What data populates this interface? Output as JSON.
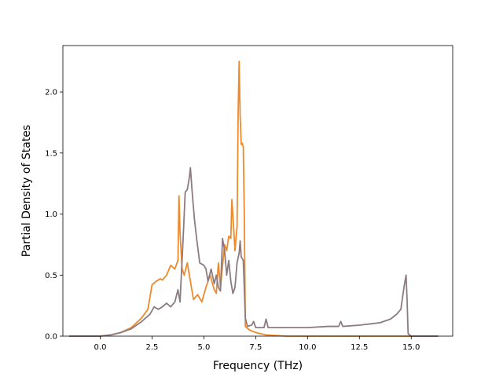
{
  "chart_data": {
    "type": "line",
    "title": "",
    "xlabel": "Frequency (THz)",
    "ylabel": "Partial Density of States",
    "xlim": [
      -1.8,
      17.0
    ],
    "ylim": [
      0.0,
      2.38
    ],
    "xticks": [
      0.0,
      2.5,
      5.0,
      7.5,
      10.0,
      12.5,
      15.0
    ],
    "xtick_labels": [
      "0.0",
      "2.5",
      "5.0",
      "7.5",
      "10.0",
      "12.5",
      "15.0"
    ],
    "yticks": [
      0.0,
      0.5,
      1.0,
      1.5,
      2.0
    ],
    "ytick_labels": [
      "0.0",
      "0.5",
      "1.0",
      "1.5",
      "2.0"
    ],
    "grid": false,
    "legend": "none",
    "series": [
      {
        "color": "#ee8a2c",
        "points": [
          [
            -1.5,
            0.0
          ],
          [
            0.0,
            0.0
          ],
          [
            0.5,
            0.01
          ],
          [
            1.0,
            0.03
          ],
          [
            1.5,
            0.07
          ],
          [
            2.0,
            0.15
          ],
          [
            2.3,
            0.22
          ],
          [
            2.5,
            0.42
          ],
          [
            2.7,
            0.45
          ],
          [
            2.9,
            0.47
          ],
          [
            3.0,
            0.46
          ],
          [
            3.2,
            0.5
          ],
          [
            3.4,
            0.58
          ],
          [
            3.6,
            0.55
          ],
          [
            3.75,
            0.62
          ],
          [
            3.8,
            1.15
          ],
          [
            3.85,
            0.85
          ],
          [
            3.95,
            0.55
          ],
          [
            4.05,
            0.5
          ],
          [
            4.2,
            0.6
          ],
          [
            4.3,
            0.5
          ],
          [
            4.5,
            0.3
          ],
          [
            4.7,
            0.34
          ],
          [
            4.9,
            0.28
          ],
          [
            5.1,
            0.4
          ],
          [
            5.3,
            0.5
          ],
          [
            5.5,
            0.38
          ],
          [
            5.6,
            0.35
          ],
          [
            5.7,
            0.6
          ],
          [
            5.8,
            0.4
          ],
          [
            6.0,
            0.75
          ],
          [
            6.1,
            0.7
          ],
          [
            6.2,
            0.82
          ],
          [
            6.3,
            0.8
          ],
          [
            6.35,
            1.12
          ],
          [
            6.45,
            0.85
          ],
          [
            6.5,
            0.7
          ],
          [
            6.6,
            0.9
          ],
          [
            6.65,
            1.8
          ],
          [
            6.7,
            2.25
          ],
          [
            6.75,
            1.8
          ],
          [
            6.8,
            1.57
          ],
          [
            6.85,
            1.58
          ],
          [
            6.9,
            1.55
          ],
          [
            6.95,
            1.0
          ],
          [
            7.0,
            0.08
          ],
          [
            7.2,
            0.05
          ],
          [
            7.5,
            0.03
          ],
          [
            8.0,
            0.01
          ],
          [
            9.0,
            0.0
          ],
          [
            14.8,
            0.0
          ],
          [
            16.3,
            0.0
          ]
        ]
      },
      {
        "color": "#8c7b80",
        "points": [
          [
            -1.5,
            0.0
          ],
          [
            0.0,
            0.0
          ],
          [
            0.5,
            0.01
          ],
          [
            1.0,
            0.03
          ],
          [
            1.5,
            0.06
          ],
          [
            2.0,
            0.12
          ],
          [
            2.4,
            0.18
          ],
          [
            2.6,
            0.24
          ],
          [
            2.8,
            0.22
          ],
          [
            3.0,
            0.24
          ],
          [
            3.2,
            0.27
          ],
          [
            3.4,
            0.24
          ],
          [
            3.6,
            0.28
          ],
          [
            3.75,
            0.38
          ],
          [
            3.85,
            0.28
          ],
          [
            4.0,
            0.8
          ],
          [
            4.1,
            1.18
          ],
          [
            4.2,
            1.2
          ],
          [
            4.3,
            1.3
          ],
          [
            4.35,
            1.38
          ],
          [
            4.45,
            1.15
          ],
          [
            4.55,
            0.95
          ],
          [
            4.65,
            0.8
          ],
          [
            4.8,
            0.6
          ],
          [
            5.0,
            0.58
          ],
          [
            5.1,
            0.55
          ],
          [
            5.2,
            0.45
          ],
          [
            5.35,
            0.55
          ],
          [
            5.5,
            0.43
          ],
          [
            5.6,
            0.5
          ],
          [
            5.7,
            0.4
          ],
          [
            5.8,
            0.37
          ],
          [
            5.9,
            0.8
          ],
          [
            6.0,
            0.7
          ],
          [
            6.1,
            0.5
          ],
          [
            6.2,
            0.62
          ],
          [
            6.3,
            0.45
          ],
          [
            6.4,
            0.35
          ],
          [
            6.5,
            0.4
          ],
          [
            6.6,
            0.6
          ],
          [
            6.7,
            0.68
          ],
          [
            6.75,
            0.78
          ],
          [
            6.8,
            0.65
          ],
          [
            6.9,
            0.62
          ],
          [
            7.0,
            0.15
          ],
          [
            7.1,
            0.08
          ],
          [
            7.3,
            0.09
          ],
          [
            7.4,
            0.12
          ],
          [
            7.5,
            0.07
          ],
          [
            7.9,
            0.07
          ],
          [
            8.0,
            0.14
          ],
          [
            8.1,
            0.07
          ],
          [
            9.0,
            0.07
          ],
          [
            10.0,
            0.07
          ],
          [
            11.0,
            0.08
          ],
          [
            11.5,
            0.08
          ],
          [
            11.6,
            0.12
          ],
          [
            11.7,
            0.08
          ],
          [
            12.5,
            0.09
          ],
          [
            13.0,
            0.1
          ],
          [
            13.5,
            0.11
          ],
          [
            14.0,
            0.14
          ],
          [
            14.3,
            0.18
          ],
          [
            14.5,
            0.22
          ],
          [
            14.65,
            0.4
          ],
          [
            14.75,
            0.5
          ],
          [
            14.8,
            0.3
          ],
          [
            14.85,
            0.02
          ],
          [
            15.0,
            0.0
          ],
          [
            16.3,
            0.0
          ]
        ]
      }
    ]
  }
}
